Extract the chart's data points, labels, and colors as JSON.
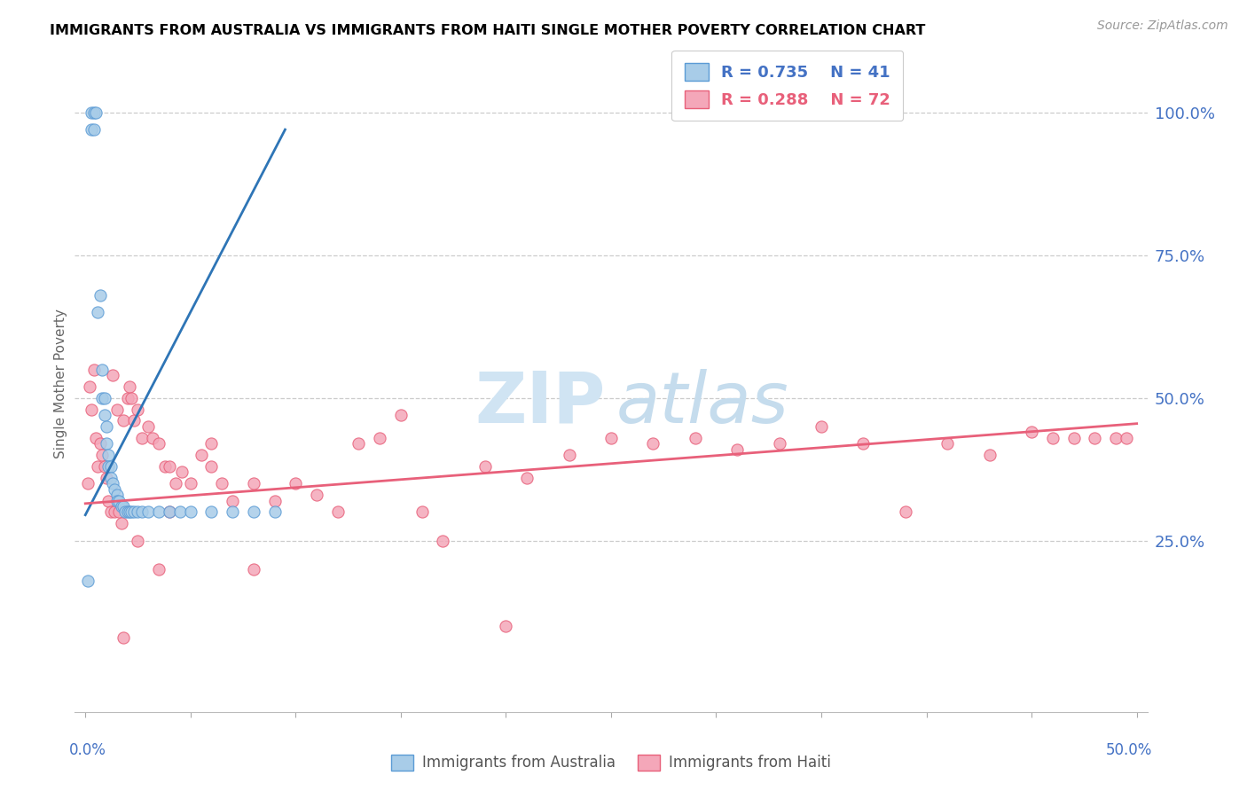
{
  "title": "IMMIGRANTS FROM AUSTRALIA VS IMMIGRANTS FROM HAITI SINGLE MOTHER POVERTY CORRELATION CHART",
  "source": "Source: ZipAtlas.com",
  "ylabel": "Single Mother Poverty",
  "right_ytick_labels": [
    "100.0%",
    "75.0%",
    "50.0%",
    "25.0%"
  ],
  "right_ytick_vals": [
    1.0,
    0.75,
    0.5,
    0.25
  ],
  "xlim": [
    -0.005,
    0.505
  ],
  "ylim": [
    -0.05,
    1.1
  ],
  "australia_color": "#a8cce8",
  "australia_edge": "#5b9bd5",
  "haiti_color": "#f4a7b9",
  "haiti_edge": "#e8607a",
  "trendline_australia": "#2e75b6",
  "trendline_haiti": "#e8607a",
  "legend_r_australia": "R = 0.735",
  "legend_n_australia": "N = 41",
  "legend_r_haiti": "R = 0.288",
  "legend_n_haiti": "N = 72",
  "legend_text_color_aus": "#4472c4",
  "legend_text_color_hai": "#e8607a",
  "axis_label_color": "#4472c4",
  "ylabel_color": "#666666",
  "watermark_zip_color": "#d0e4f3",
  "watermark_atlas_color": "#c5dced",
  "aus_x": [
    0.001,
    0.003,
    0.003,
    0.004,
    0.004,
    0.005,
    0.006,
    0.007,
    0.008,
    0.008,
    0.009,
    0.009,
    0.01,
    0.01,
    0.011,
    0.011,
    0.012,
    0.012,
    0.013,
    0.014,
    0.015,
    0.015,
    0.016,
    0.017,
    0.018,
    0.019,
    0.02,
    0.021,
    0.022,
    0.023,
    0.025,
    0.027,
    0.03,
    0.035,
    0.04,
    0.045,
    0.05,
    0.06,
    0.07,
    0.08,
    0.09
  ],
  "aus_y": [
    0.18,
    0.97,
    1.0,
    1.0,
    0.97,
    1.0,
    0.65,
    0.68,
    0.55,
    0.5,
    0.5,
    0.47,
    0.45,
    0.42,
    0.4,
    0.38,
    0.38,
    0.36,
    0.35,
    0.34,
    0.33,
    0.32,
    0.32,
    0.31,
    0.31,
    0.3,
    0.3,
    0.3,
    0.3,
    0.3,
    0.3,
    0.3,
    0.3,
    0.3,
    0.3,
    0.3,
    0.3,
    0.3,
    0.3,
    0.3,
    0.3
  ],
  "hai_x": [
    0.001,
    0.002,
    0.003,
    0.004,
    0.005,
    0.006,
    0.007,
    0.008,
    0.009,
    0.01,
    0.011,
    0.012,
    0.013,
    0.014,
    0.015,
    0.016,
    0.017,
    0.018,
    0.02,
    0.021,
    0.022,
    0.023,
    0.025,
    0.027,
    0.03,
    0.032,
    0.035,
    0.038,
    0.04,
    0.043,
    0.046,
    0.05,
    0.055,
    0.06,
    0.065,
    0.07,
    0.08,
    0.09,
    0.1,
    0.11,
    0.12,
    0.13,
    0.14,
    0.15,
    0.16,
    0.17,
    0.19,
    0.21,
    0.23,
    0.25,
    0.27,
    0.29,
    0.31,
    0.33,
    0.35,
    0.37,
    0.39,
    0.41,
    0.43,
    0.45,
    0.46,
    0.47,
    0.48,
    0.49,
    0.495,
    0.035,
    0.018,
    0.025,
    0.04,
    0.06,
    0.08,
    0.2
  ],
  "hai_y": [
    0.35,
    0.52,
    0.48,
    0.55,
    0.43,
    0.38,
    0.42,
    0.4,
    0.38,
    0.36,
    0.32,
    0.3,
    0.54,
    0.3,
    0.48,
    0.3,
    0.28,
    0.46,
    0.5,
    0.52,
    0.5,
    0.46,
    0.48,
    0.43,
    0.45,
    0.43,
    0.42,
    0.38,
    0.38,
    0.35,
    0.37,
    0.35,
    0.4,
    0.38,
    0.35,
    0.32,
    0.35,
    0.32,
    0.35,
    0.33,
    0.3,
    0.42,
    0.43,
    0.47,
    0.3,
    0.25,
    0.38,
    0.36,
    0.4,
    0.43,
    0.42,
    0.43,
    0.41,
    0.42,
    0.45,
    0.42,
    0.3,
    0.42,
    0.4,
    0.44,
    0.43,
    0.43,
    0.43,
    0.43,
    0.43,
    0.2,
    0.08,
    0.25,
    0.3,
    0.42,
    0.2,
    0.1
  ],
  "aus_trend_x": [
    0.0,
    0.095
  ],
  "aus_trend_y": [
    0.295,
    0.97
  ],
  "hai_trend_x": [
    0.0,
    0.5
  ],
  "hai_trend_y": [
    0.315,
    0.455
  ]
}
